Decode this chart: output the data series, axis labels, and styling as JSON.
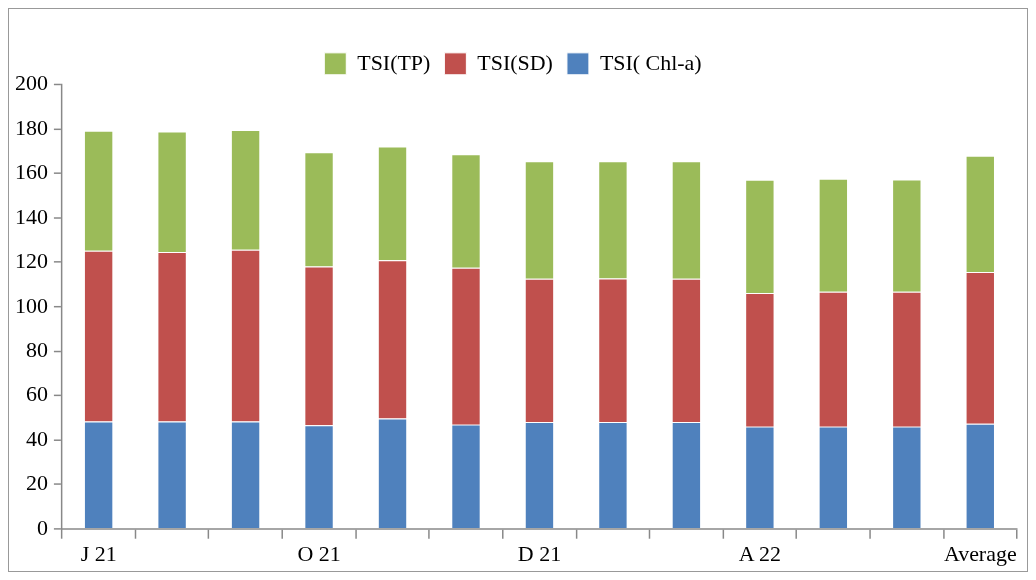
{
  "chart_data": {
    "type": "bar",
    "stacked": true,
    "categories": [
      "J 21",
      null,
      null,
      "O 21",
      null,
      null,
      "D 21",
      null,
      null,
      "A 22",
      null,
      null,
      "Average"
    ],
    "series": [
      {
        "name": "TSI( Chl-a)",
        "color": "#4f81bd",
        "values": [
          48.3,
          48.3,
          48.3,
          46.6,
          49.7,
          46.9,
          48.1,
          48.1,
          48.1,
          46.0,
          46.0,
          46.0,
          47.3
        ]
      },
      {
        "name": "TSI(SD)",
        "color": "#c0504d",
        "values": [
          76.9,
          76.4,
          77.4,
          71.5,
          71.2,
          70.7,
          64.5,
          64.6,
          64.5,
          60.2,
          60.7,
          60.7,
          68.4
        ]
      },
      {
        "name": "TSI(TP)",
        "color": "#9bbb59",
        "values": [
          54.1,
          54.2,
          53.9,
          51.5,
          51.3,
          51.1,
          52.9,
          52.8,
          52.9,
          51.0,
          50.9,
          50.6,
          52.3
        ]
      }
    ],
    "ylim": [
      0,
      200
    ],
    "yticks": [
      0,
      20,
      40,
      60,
      80,
      100,
      120,
      140,
      160,
      180,
      200
    ],
    "grid": false,
    "legend": "top"
  }
}
